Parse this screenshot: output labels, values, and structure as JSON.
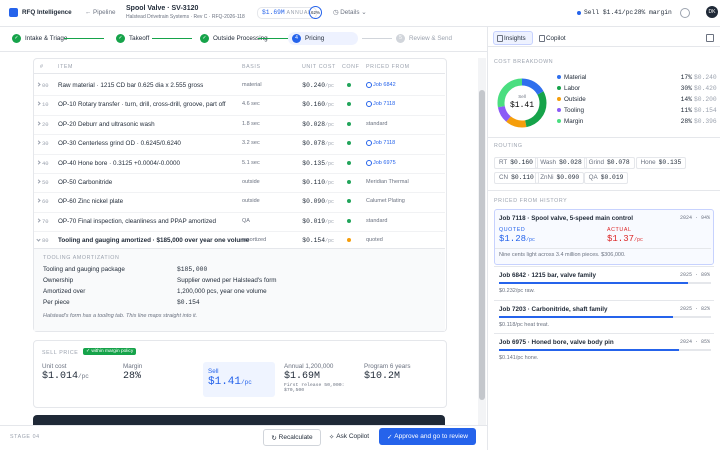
{
  "header": {
    "app": "RFQ Intelligence",
    "back": "Pipeline",
    "title": "Spool Valve · SV-3120",
    "subtitle": "Halstead Drivetrain Systems · Rev C · RFQ-2026-118",
    "annual": "$1.69M",
    "annual_label": "ANNUAL",
    "score": "62%",
    "details": "Details",
    "sell": "Sell $1.41/pc",
    "margin": "28% margin",
    "avatar": "DK"
  },
  "steps": [
    {
      "label": "Intake & Triage",
      "state": "done"
    },
    {
      "label": "Takeoff",
      "state": "done"
    },
    {
      "label": "Outside Processing",
      "state": "done"
    },
    {
      "number": "4",
      "label": "Pricing",
      "state": "active"
    },
    {
      "number": "5",
      "label": "Review & Send",
      "state": "todo"
    }
  ],
  "table": {
    "columns": [
      "#",
      "ITEM",
      "BASIS",
      "UNIT COST",
      "CONF",
      "PRICED FROM"
    ],
    "unit": "/pc",
    "rows": [
      {
        "num": "00",
        "item": "Raw material · 1215 CD bar 0.625 dia x 2.555 gross",
        "basis": "material",
        "cost": "$0.240",
        "conf": "#22a55b",
        "source": "Job 6842",
        "link": true
      },
      {
        "num": "10",
        "item": "OP-10 Rotary transfer · turn, drill, cross-drill, groove, part off",
        "basis": "4.6 sec",
        "cost": "$0.160",
        "conf": "#22a55b",
        "source": "Job 7118",
        "link": true
      },
      {
        "num": "20",
        "item": "OP-20 Deburr and ultrasonic wash",
        "basis": "1.8 sec",
        "cost": "$0.028",
        "conf": "#22a55b",
        "source": "standard",
        "link": false
      },
      {
        "num": "30",
        "item": "OP-30 Centerless grind OD · 0.6245/0.6240",
        "basis": "3.2 sec",
        "cost": "$0.078",
        "conf": "#22a55b",
        "source": "Job 7118",
        "link": true
      },
      {
        "num": "40",
        "item": "OP-40 Hone bore · 0.3125 +0.0004/-0.0000",
        "basis": "5.1 sec",
        "cost": "$0.135",
        "conf": "#22a55b",
        "source": "Job 6975",
        "link": true
      },
      {
        "num": "50",
        "item": "OP-50 Carbonitride",
        "basis": "outside",
        "cost": "$0.110",
        "conf": "#22a55b",
        "source": "Meridian Thermal",
        "link": false
      },
      {
        "num": "60",
        "item": "OP-60 Zinc nickel plate",
        "basis": "outside",
        "cost": "$0.090",
        "conf": "#22a55b",
        "source": "Calumet Plating",
        "link": false
      },
      {
        "num": "70",
        "item": "OP-70 Final inspection, cleanliness and PPAP amortized",
        "basis": "QA",
        "cost": "$0.019",
        "conf": "#22a55b",
        "source": "standard",
        "link": false
      },
      {
        "num": "80",
        "item": "Tooling and gauging amortized · $185,000 over year one volume",
        "basis": "amortized",
        "cost": "$0.154",
        "conf": "#f59e0b",
        "source": "quoted",
        "link": false,
        "expanded": true
      }
    ]
  },
  "tooling": {
    "title": "TOOLING AMORTIZATION",
    "rows": [
      [
        "Tooling and gauging package",
        "$185,000"
      ],
      [
        "Ownership",
        "Supplier owned per Halstead's form"
      ],
      [
        "Amortized over",
        "1,200,000 pcs, year one volume"
      ],
      [
        "Per piece",
        "$0.154"
      ]
    ],
    "note": "Halstead's form has a tooling tab. This line maps straight into it."
  },
  "sell_price": {
    "title": "SELL PRICE",
    "badge": "within margin policy",
    "unit_cost_label": "Unit cost",
    "unit_cost": "$1.014",
    "unit": "/pc",
    "margin_label": "Margin",
    "margin": "28%",
    "sell_label": "Sell",
    "sell": "$1.41",
    "annual_label": "Annual 1,200,000",
    "annual": "$1.69M",
    "first_release": "First release 50,000: $70,500",
    "program_label": "Program 6 years",
    "program": "$10.2M"
  },
  "footer": {
    "stage": "STAGE 04",
    "recalculate": "Recalculate",
    "ask": "Ask Copilot",
    "approve": "Approve and go to review"
  },
  "panel": {
    "tabs": [
      "Insights",
      "Copilot"
    ],
    "breakdown_title": "COST BREAKDOWN",
    "center_label": "Sell",
    "center_value": "$1.41",
    "breakdown": [
      {
        "name": "Material",
        "color": "#2f6fed",
        "value": 17,
        "value_label": "17%",
        "amount": "$0.240"
      },
      {
        "name": "Labor",
        "color": "#16a34a",
        "value": 30,
        "value_label": "30%",
        "amount": "$0.420"
      },
      {
        "name": "Outside",
        "color": "#f59e0b",
        "value": 14,
        "value_label": "14%",
        "amount": "$0.200"
      },
      {
        "name": "Tooling",
        "color": "#8b5cf6",
        "value": 11,
        "value_label": "11%",
        "amount": "$0.154"
      },
      {
        "name": "Margin",
        "color": "#4ade80",
        "value": 28,
        "value_label": "28%",
        "amount": "$0.396"
      }
    ],
    "routing_title": "ROUTING",
    "routing": [
      {
        "name": "RT",
        "value": "$0.160"
      },
      {
        "name": "Wash",
        "value": "$0.028"
      },
      {
        "name": "Grind",
        "value": "$0.078"
      },
      {
        "name": "Hone",
        "value": "$0.135"
      },
      {
        "name": "CN",
        "value": "$0.110"
      },
      {
        "name": "ZnNi",
        "value": "$0.090"
      },
      {
        "name": "QA",
        "value": "$0.019"
      }
    ],
    "history_title": "PRICED FROM HISTORY",
    "featured": {
      "title": "Job 7118 · Spool valve, 5-speed main control",
      "meta": "2024 · 94%",
      "quoted_label": "QUOTED",
      "quoted": "$1.28",
      "actual_label": "ACTUAL",
      "actual": "$1.37",
      "unit": "/pc",
      "note": "Nine cents light across 3.4 million pieces. $306,000."
    },
    "history": [
      {
        "title": "Job 6842 · 1215 bar, valve family",
        "meta": "2025 · 89%",
        "match": 89,
        "note": "$0.232/pc raw."
      },
      {
        "title": "Job 7203 · Carbonitride, shaft family",
        "meta": "2025 · 82%",
        "match": 82,
        "note": "$0.118/pc heat treat."
      },
      {
        "title": "Job 6975 · Honed bore, valve body pin",
        "meta": "2024 · 85%",
        "match": 85,
        "note": "$0.141/pc hone."
      }
    ]
  }
}
